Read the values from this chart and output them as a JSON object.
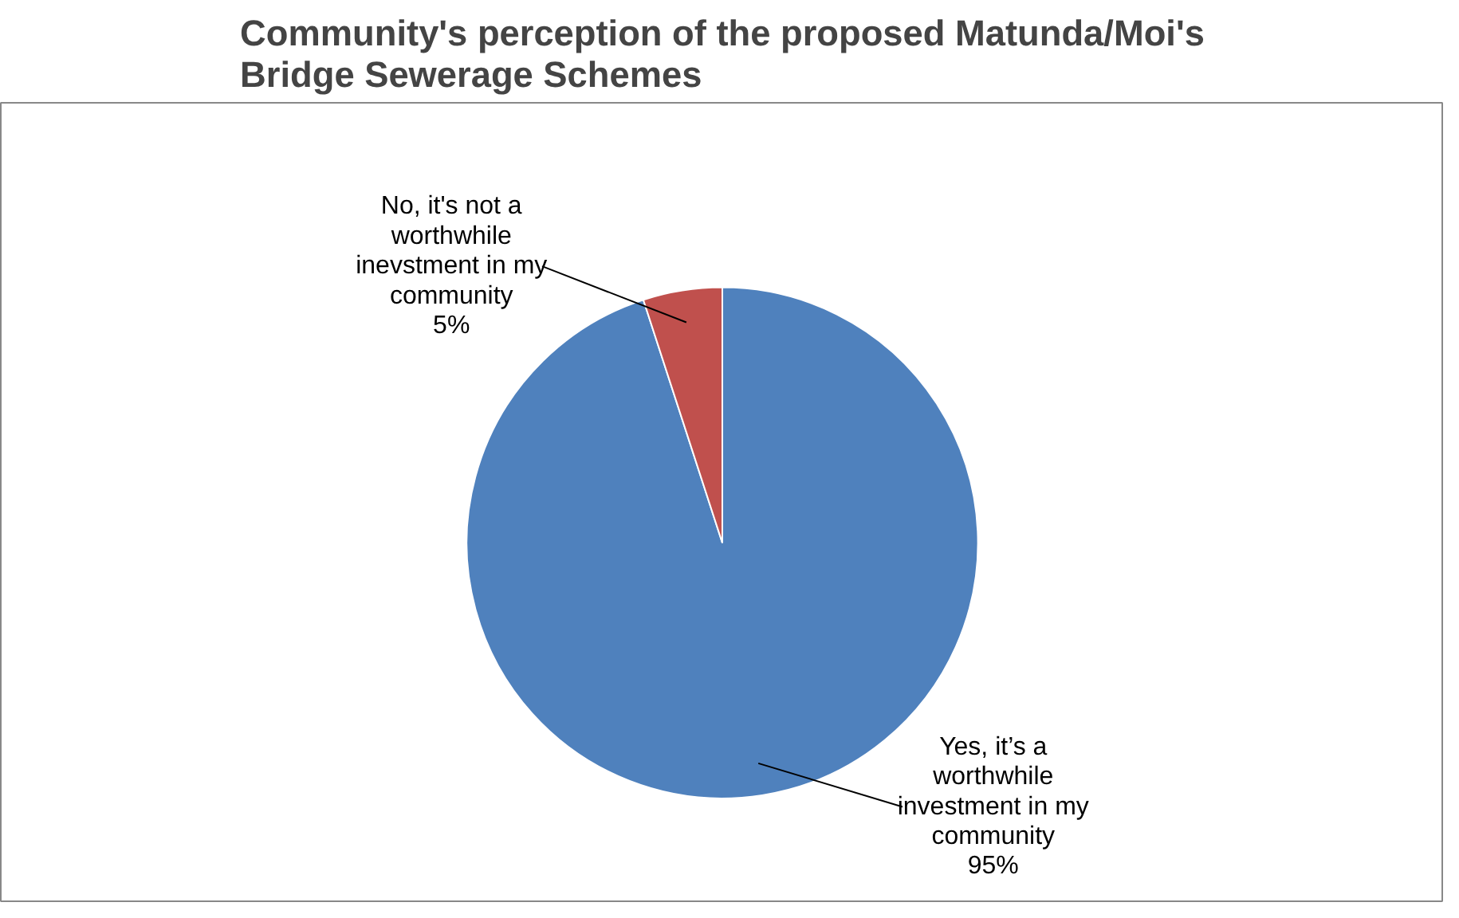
{
  "chart_data": {
    "type": "pie",
    "title": "Community's perception of the proposed Matunda/Moi's Bridge Sewerage Schemes",
    "categories": [
      "Yes, it’s a worthwhile investment in my community",
      "No, it's not a worthwhile inevstment in my community"
    ],
    "values": [
      95,
      5
    ],
    "value_labels": [
      "95%",
      "5%"
    ],
    "colors": [
      "#4f81bd",
      "#c0504d"
    ]
  }
}
